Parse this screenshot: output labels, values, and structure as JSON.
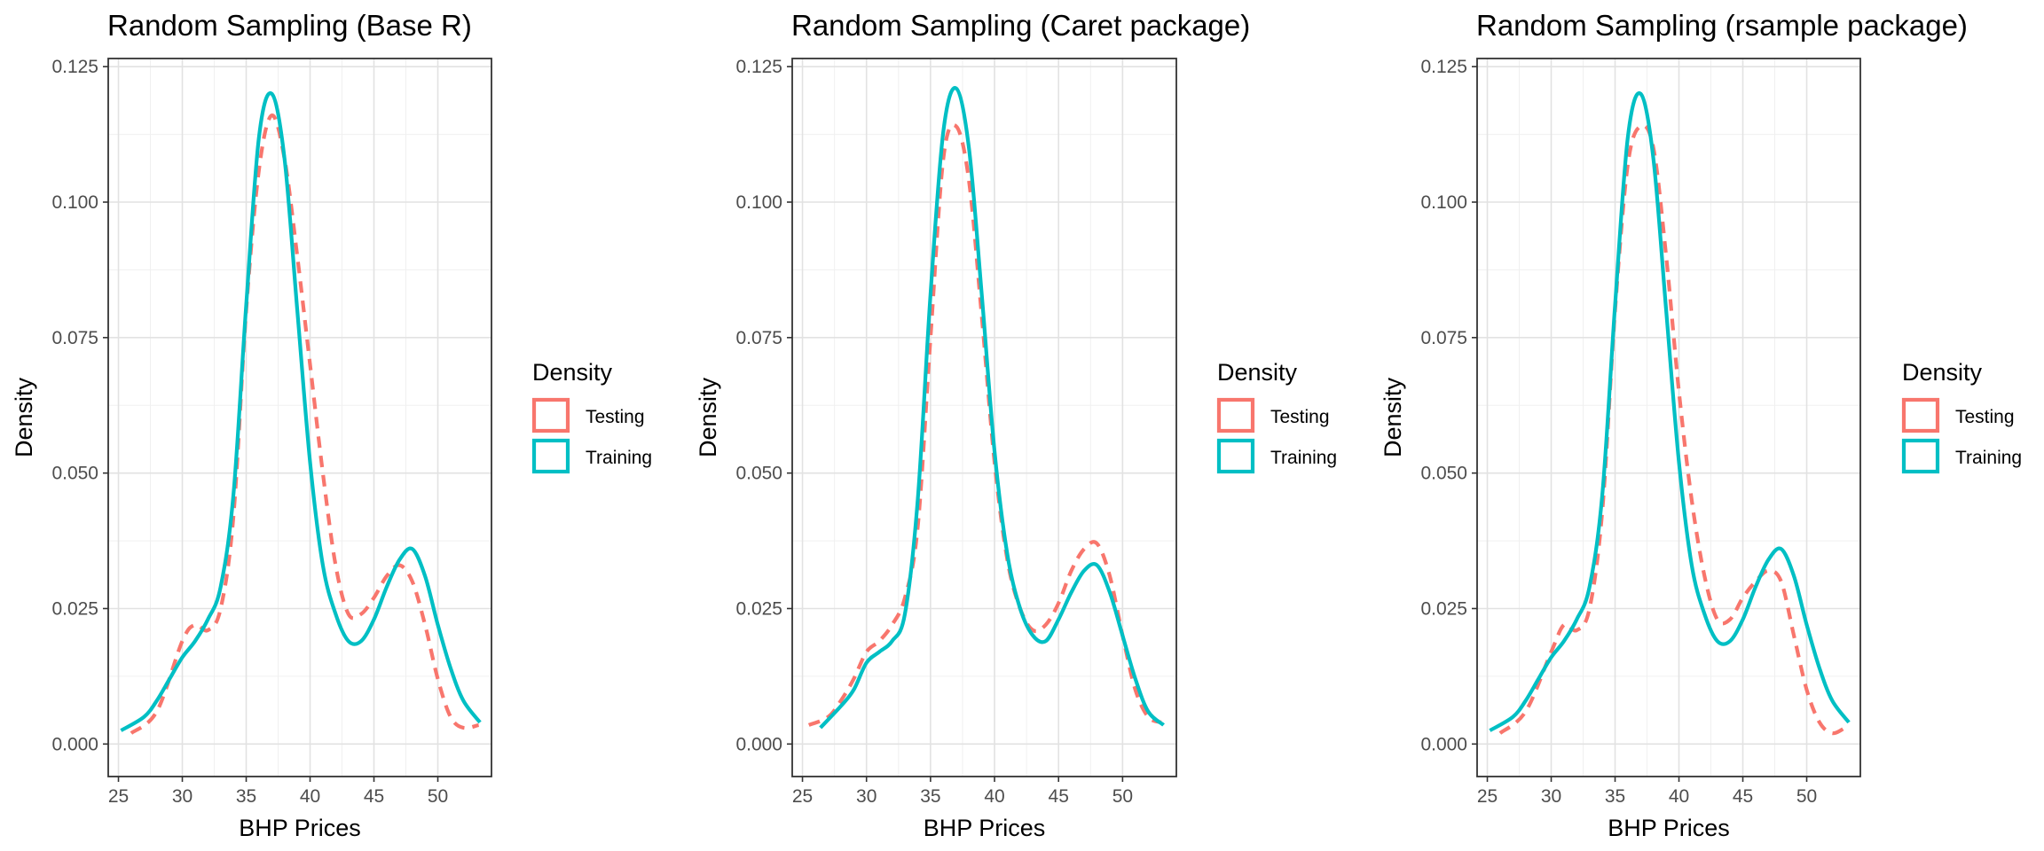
{
  "legend": {
    "title": "Density",
    "items": [
      {
        "label": "Testing",
        "color": "#F8766D",
        "dash": "dashed"
      },
      {
        "label": "Training",
        "color": "#00BFC4",
        "dash": "solid"
      }
    ]
  },
  "chart_data": [
    {
      "type": "line",
      "title": "Random Sampling (Base R)",
      "xlabel": "BHP Prices",
      "ylabel": "Density",
      "xlim": [
        24.2,
        54.2
      ],
      "ylim": [
        -0.006,
        0.1265
      ],
      "xticks": [
        "25",
        "30",
        "35",
        "40",
        "45",
        "50"
      ],
      "yticks": [
        "0.000",
        "0.025",
        "0.050",
        "0.075",
        "0.100",
        "0.125"
      ],
      "grid": true,
      "legend_position": "right",
      "series": [
        {
          "name": "Testing",
          "color": "#F8766D",
          "dash": "dashed",
          "points": [
            [
              26,
              0.002
            ],
            [
              28,
              0.006
            ],
            [
              30,
              0.019
            ],
            [
              31,
              0.022
            ],
            [
              32,
              0.021
            ],
            [
              33,
              0.025
            ],
            [
              34,
              0.042
            ],
            [
              35,
              0.08
            ],
            [
              36,
              0.106
            ],
            [
              37,
              0.116
            ],
            [
              38,
              0.108
            ],
            [
              39,
              0.09
            ],
            [
              40,
              0.07
            ],
            [
              41,
              0.05
            ],
            [
              42,
              0.033
            ],
            [
              43,
              0.024
            ],
            [
              44,
              0.024
            ],
            [
              45,
              0.027
            ],
            [
              46,
              0.031
            ],
            [
              47,
              0.033
            ],
            [
              48,
              0.03
            ],
            [
              49,
              0.022
            ],
            [
              50,
              0.012
            ],
            [
              51,
              0.005
            ],
            [
              52,
              0.003
            ],
            [
              53.2,
              0.0035
            ]
          ]
        },
        {
          "name": "Training",
          "color": "#00BFC4",
          "dash": "solid",
          "points": [
            [
              25.2,
              0.0025
            ],
            [
              27,
              0.005
            ],
            [
              28,
              0.008
            ],
            [
              29,
              0.012
            ],
            [
              30,
              0.016
            ],
            [
              31,
              0.019
            ],
            [
              32,
              0.023
            ],
            [
              33,
              0.029
            ],
            [
              34,
              0.046
            ],
            [
              35,
              0.081
            ],
            [
              36,
              0.112
            ],
            [
              37,
              0.12
            ],
            [
              38,
              0.108
            ],
            [
              39,
              0.08
            ],
            [
              40,
              0.052
            ],
            [
              41,
              0.033
            ],
            [
              42,
              0.024
            ],
            [
              43,
              0.019
            ],
            [
              44,
              0.019
            ],
            [
              45,
              0.023
            ],
            [
              46,
              0.029
            ],
            [
              47,
              0.034
            ],
            [
              48,
              0.036
            ],
            [
              49,
              0.031
            ],
            [
              50,
              0.022
            ],
            [
              51,
              0.014
            ],
            [
              52,
              0.008
            ],
            [
              53.3,
              0.004
            ]
          ]
        }
      ]
    },
    {
      "type": "line",
      "title": "Random Sampling (Caret package)",
      "xlabel": "BHP Prices",
      "ylabel": "Density",
      "xlim": [
        24.2,
        54.2
      ],
      "ylim": [
        -0.006,
        0.1265
      ],
      "xticks": [
        "25",
        "30",
        "35",
        "40",
        "45",
        "50"
      ],
      "yticks": [
        "0.000",
        "0.025",
        "0.050",
        "0.075",
        "0.100",
        "0.125"
      ],
      "grid": true,
      "legend_position": "right",
      "series": [
        {
          "name": "Testing",
          "color": "#F8766D",
          "dash": "dashed",
          "points": [
            [
              25.5,
              0.0035
            ],
            [
              27,
              0.005
            ],
            [
              28,
              0.008
            ],
            [
              29,
              0.012
            ],
            [
              30,
              0.017
            ],
            [
              31,
              0.019
            ],
            [
              32,
              0.022
            ],
            [
              33,
              0.027
            ],
            [
              34,
              0.04
            ],
            [
              35,
              0.075
            ],
            [
              36,
              0.108
            ],
            [
              37,
              0.114
            ],
            [
              38,
              0.104
            ],
            [
              39,
              0.079
            ],
            [
              40,
              0.052
            ],
            [
              41,
              0.034
            ],
            [
              42,
              0.025
            ],
            [
              43,
              0.021
            ],
            [
              44,
              0.022
            ],
            [
              45,
              0.026
            ],
            [
              46,
              0.032
            ],
            [
              47,
              0.036
            ],
            [
              48,
              0.037
            ],
            [
              49,
              0.031
            ],
            [
              50,
              0.02
            ],
            [
              51,
              0.01
            ],
            [
              52,
              0.005
            ],
            [
              53,
              0.004
            ]
          ]
        },
        {
          "name": "Training",
          "color": "#00BFC4",
          "dash": "solid",
          "points": [
            [
              26.4,
              0.003
            ],
            [
              28,
              0.007
            ],
            [
              29,
              0.01
            ],
            [
              30,
              0.015
            ],
            [
              31,
              0.017
            ],
            [
              32,
              0.019
            ],
            [
              33,
              0.024
            ],
            [
              34,
              0.045
            ],
            [
              35,
              0.083
            ],
            [
              36,
              0.113
            ],
            [
              37,
              0.121
            ],
            [
              38,
              0.11
            ],
            [
              39,
              0.083
            ],
            [
              40,
              0.054
            ],
            [
              41,
              0.035
            ],
            [
              42,
              0.025
            ],
            [
              43,
              0.02
            ],
            [
              44,
              0.019
            ],
            [
              45,
              0.023
            ],
            [
              46,
              0.028
            ],
            [
              47,
              0.032
            ],
            [
              48,
              0.033
            ],
            [
              49,
              0.028
            ],
            [
              50,
              0.02
            ],
            [
              51,
              0.012
            ],
            [
              52,
              0.006
            ],
            [
              53.2,
              0.0035
            ]
          ]
        }
      ]
    },
    {
      "type": "line",
      "title": "Random Sampling (rsample package)",
      "xlabel": "BHP Prices",
      "ylabel": "Density",
      "xlim": [
        24.2,
        54.2
      ],
      "ylim": [
        -0.006,
        0.1265
      ],
      "xticks": [
        "25",
        "30",
        "35",
        "40",
        "45",
        "50"
      ],
      "yticks": [
        "0.000",
        "0.025",
        "0.050",
        "0.075",
        "0.100",
        "0.125"
      ],
      "grid": true,
      "legend_position": "right",
      "series": [
        {
          "name": "Testing",
          "color": "#F8766D",
          "dash": "dashed",
          "points": [
            [
              26,
              0.002
            ],
            [
              28,
              0.006
            ],
            [
              30,
              0.017
            ],
            [
              31,
              0.022
            ],
            [
              32,
              0.021
            ],
            [
              33,
              0.025
            ],
            [
              34,
              0.043
            ],
            [
              35,
              0.08
            ],
            [
              36,
              0.107
            ],
            [
              37,
              0.114
            ],
            [
              38,
              0.11
            ],
            [
              39,
              0.09
            ],
            [
              40,
              0.065
            ],
            [
              41,
              0.045
            ],
            [
              42,
              0.031
            ],
            [
              43,
              0.023
            ],
            [
              44,
              0.023
            ],
            [
              45,
              0.027
            ],
            [
              46,
              0.03
            ],
            [
              47,
              0.032
            ],
            [
              48,
              0.03
            ],
            [
              49,
              0.02
            ],
            [
              50,
              0.01
            ],
            [
              51,
              0.004
            ],
            [
              52,
              0.002
            ],
            [
              53,
              0.003
            ]
          ]
        },
        {
          "name": "Training",
          "color": "#00BFC4",
          "dash": "solid",
          "points": [
            [
              25.2,
              0.0025
            ],
            [
              27,
              0.005
            ],
            [
              28,
              0.008
            ],
            [
              29,
              0.012
            ],
            [
              30,
              0.016
            ],
            [
              31,
              0.019
            ],
            [
              32,
              0.023
            ],
            [
              33,
              0.029
            ],
            [
              34,
              0.046
            ],
            [
              35,
              0.081
            ],
            [
              36,
              0.112
            ],
            [
              37,
              0.12
            ],
            [
              38,
              0.108
            ],
            [
              39,
              0.08
            ],
            [
              40,
              0.052
            ],
            [
              41,
              0.033
            ],
            [
              42,
              0.024
            ],
            [
              43,
              0.019
            ],
            [
              44,
              0.019
            ],
            [
              45,
              0.023
            ],
            [
              46,
              0.029
            ],
            [
              47,
              0.034
            ],
            [
              48,
              0.036
            ],
            [
              49,
              0.031
            ],
            [
              50,
              0.022
            ],
            [
              51,
              0.014
            ],
            [
              52,
              0.008
            ],
            [
              53.3,
              0.004
            ]
          ]
        }
      ]
    }
  ]
}
